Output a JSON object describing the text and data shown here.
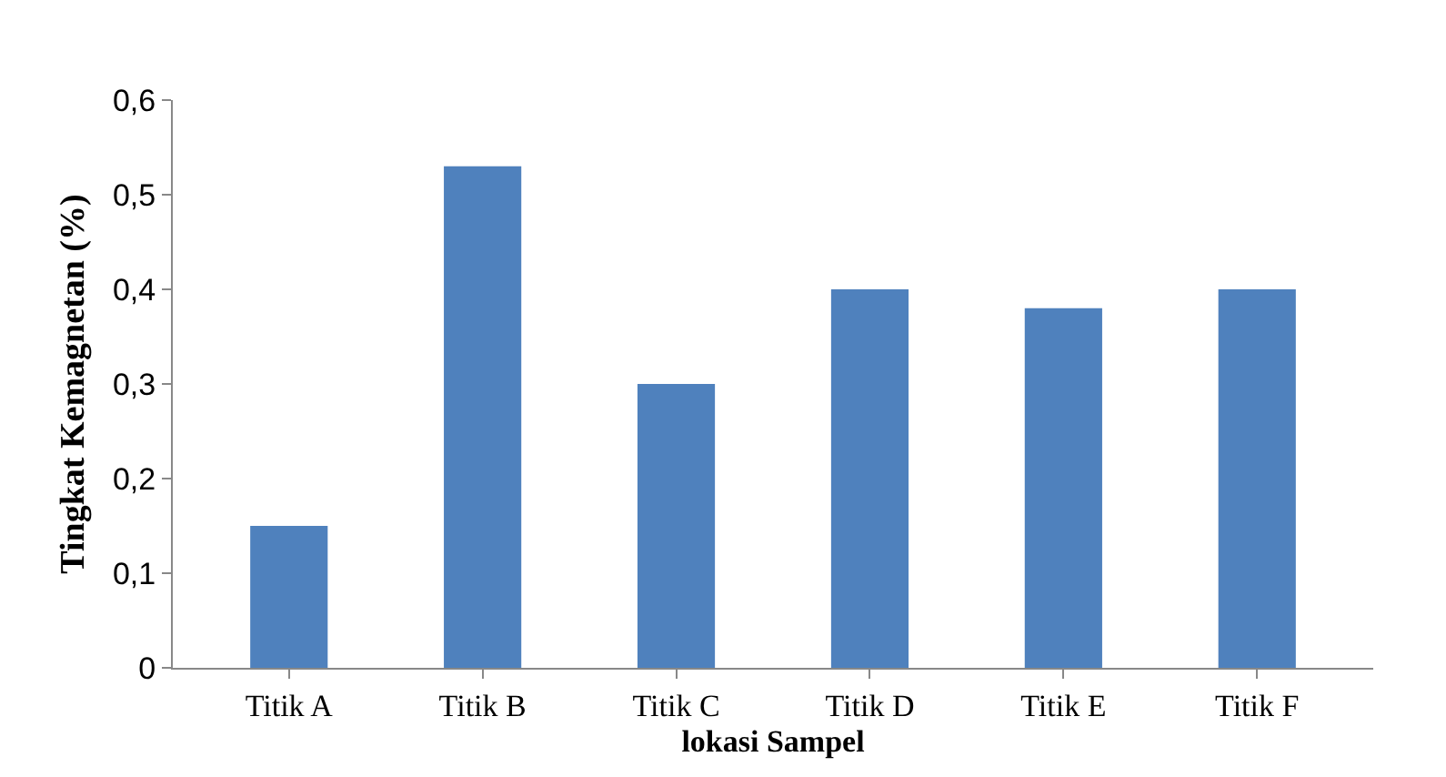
{
  "chart_data": {
    "type": "bar",
    "xlabel": "lokasi Sampel",
    "ylabel": "Tingkat Kemagnetan (%)",
    "categories": [
      "Titik A",
      "Titik B",
      "Titik C",
      "Titik D",
      "Titik E",
      "Titik F"
    ],
    "values": [
      0.15,
      0.53,
      0.3,
      0.4,
      0.38,
      0.4
    ],
    "color": "#4f81bd",
    "ylim": [
      0,
      0.6
    ],
    "yticks": [
      {
        "value": 0,
        "label": "0"
      },
      {
        "value": 0.1,
        "label": "0,1"
      },
      {
        "value": 0.2,
        "label": "0,2"
      },
      {
        "value": 0.3,
        "label": "0,3"
      },
      {
        "value": 0.4,
        "label": "0,4"
      },
      {
        "value": 0.5,
        "label": "0,5"
      },
      {
        "value": 0.6,
        "label": "0,6"
      }
    ],
    "legend": false
  }
}
